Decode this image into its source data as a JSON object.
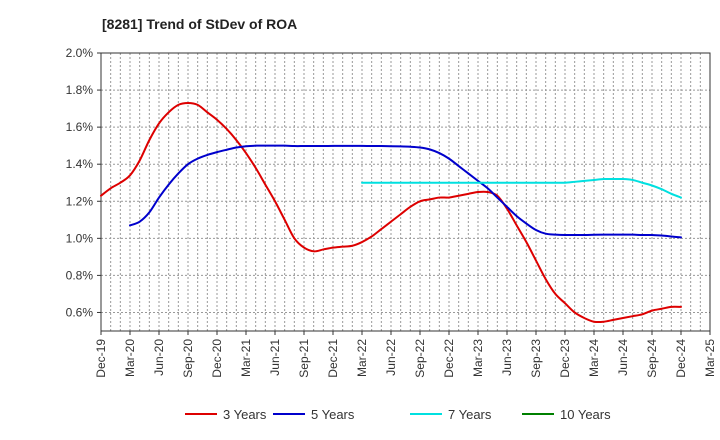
{
  "chart_data": {
    "type": "line",
    "title": "[8281]  Trend of StDev of ROA",
    "xlabel": "",
    "ylabel": "",
    "y_tick_labels": [
      "0.6%",
      "0.8%",
      "1.0%",
      "1.2%",
      "1.4%",
      "1.6%",
      "1.8%",
      "2.0%"
    ],
    "ylim": [
      0.5,
      2.0
    ],
    "x_tick_labels": [
      "Dec-19",
      "Mar-20",
      "Jun-20",
      "Sep-20",
      "Dec-20",
      "Mar-21",
      "Jun-21",
      "Sep-21",
      "Dec-21",
      "Mar-22",
      "Jun-22",
      "Sep-22",
      "Dec-22",
      "Mar-23",
      "Jun-23",
      "Sep-23",
      "Dec-23",
      "Mar-24",
      "Jun-24",
      "Sep-24",
      "Dec-24",
      "Mar-25"
    ],
    "grid": true,
    "legend_position": "bottom",
    "series": [
      {
        "name": "3 Years",
        "color": "#dd0000",
        "x": [
          "Dec-19",
          "Jan-20",
          "Feb-20",
          "Mar-20",
          "Apr-20",
          "May-20",
          "Jun-20",
          "Jul-20",
          "Aug-20",
          "Sep-20",
          "Oct-20",
          "Nov-20",
          "Dec-20",
          "Jan-21",
          "Feb-21",
          "Mar-21",
          "Apr-21",
          "May-21",
          "Jun-21",
          "Jul-21",
          "Aug-21",
          "Sep-21",
          "Oct-21",
          "Nov-21",
          "Dec-21",
          "Jan-22",
          "Feb-22",
          "Mar-22",
          "Apr-22",
          "May-22",
          "Jun-22",
          "Jul-22",
          "Aug-22",
          "Sep-22",
          "Oct-22",
          "Nov-22",
          "Dec-22",
          "Jan-23",
          "Feb-23",
          "Mar-23",
          "Apr-23",
          "May-23",
          "Jun-23",
          "Jul-23",
          "Aug-23",
          "Sep-23",
          "Oct-23",
          "Nov-23",
          "Dec-23",
          "Jan-24",
          "Feb-24",
          "Mar-24",
          "Apr-24",
          "May-24",
          "Jun-24",
          "Jul-24",
          "Aug-24",
          "Sep-24",
          "Oct-24",
          "Nov-24",
          "Dec-24"
        ],
        "values": [
          1.23,
          1.27,
          1.3,
          1.34,
          1.42,
          1.53,
          1.62,
          1.68,
          1.72,
          1.73,
          1.72,
          1.68,
          1.64,
          1.59,
          1.53,
          1.46,
          1.38,
          1.29,
          1.2,
          1.1,
          1.0,
          0.95,
          0.93,
          0.94,
          0.95,
          0.955,
          0.96,
          0.98,
          1.01,
          1.05,
          1.09,
          1.13,
          1.17,
          1.2,
          1.21,
          1.22,
          1.22,
          1.23,
          1.24,
          1.25,
          1.25,
          1.23,
          1.16,
          1.07,
          0.98,
          0.88,
          0.78,
          0.7,
          0.65,
          0.6,
          0.57,
          0.55,
          0.55,
          0.56,
          0.57,
          0.58,
          0.59,
          0.61,
          0.62,
          0.63,
          0.63
        ]
      },
      {
        "name": "5 Years",
        "color": "#0000cc",
        "x": [
          "Dec-19",
          "Jan-20",
          "Feb-20",
          "Mar-20",
          "Apr-20",
          "May-20",
          "Jun-20",
          "Jul-20",
          "Aug-20",
          "Sep-20",
          "Oct-20",
          "Nov-20",
          "Dec-20",
          "Jan-21",
          "Feb-21",
          "Mar-21",
          "Apr-21",
          "May-21",
          "Jun-21",
          "Jul-21",
          "Aug-21",
          "Sep-21",
          "Oct-21",
          "Nov-21",
          "Dec-21",
          "Jan-22",
          "Feb-22",
          "Mar-22",
          "Apr-22",
          "May-22",
          "Jun-22",
          "Jul-22",
          "Aug-22",
          "Sep-22",
          "Oct-22",
          "Nov-22",
          "Dec-22",
          "Jan-23",
          "Feb-23",
          "Mar-23",
          "Apr-23",
          "May-23",
          "Jun-23",
          "Jul-23",
          "Aug-23",
          "Sep-23",
          "Oct-23",
          "Nov-23",
          "Dec-23",
          "Jan-24",
          "Feb-24",
          "Mar-24",
          "Apr-24",
          "May-24",
          "Jun-24",
          "Jul-24",
          "Aug-24",
          "Sep-24",
          "Oct-24",
          "Nov-24",
          "Dec-24"
        ],
        "values": [
          null,
          null,
          null,
          1.07,
          1.09,
          1.14,
          1.22,
          1.29,
          1.35,
          1.4,
          1.43,
          1.45,
          1.465,
          1.478,
          1.49,
          1.497,
          1.5,
          1.5,
          1.5,
          1.5,
          1.498,
          1.498,
          1.498,
          1.498,
          1.499,
          1.499,
          1.499,
          1.499,
          1.498,
          1.498,
          1.497,
          1.496,
          1.494,
          1.49,
          1.48,
          1.46,
          1.43,
          1.39,
          1.35,
          1.31,
          1.27,
          1.22,
          1.17,
          1.12,
          1.08,
          1.045,
          1.025,
          1.02,
          1.018,
          1.018,
          1.018,
          1.019,
          1.02,
          1.02,
          1.02,
          1.02,
          1.018,
          1.018,
          1.015,
          1.01,
          1.005
        ]
      },
      {
        "name": "7 Years",
        "color": "#00e0e0",
        "x": [
          "Mar-22",
          "Apr-22",
          "May-22",
          "Jun-22",
          "Jul-22",
          "Aug-22",
          "Sep-22",
          "Oct-22",
          "Nov-22",
          "Dec-22",
          "Jan-23",
          "Feb-23",
          "Mar-23",
          "Apr-23",
          "May-23",
          "Jun-23",
          "Jul-23",
          "Aug-23",
          "Sep-23",
          "Oct-23",
          "Nov-23",
          "Dec-23",
          "Jan-24",
          "Feb-24",
          "Mar-24",
          "Apr-24",
          "May-24",
          "Jun-24",
          "Jul-24",
          "Aug-24",
          "Sep-24",
          "Oct-24",
          "Nov-24",
          "Dec-24"
        ],
        "values": [
          1.3,
          1.3,
          1.3,
          1.3,
          1.3,
          1.3,
          1.3,
          1.3,
          1.3,
          1.3,
          1.3,
          1.3,
          1.3,
          1.3,
          1.3,
          1.3,
          1.3,
          1.3,
          1.3,
          1.3,
          1.3,
          1.3,
          1.305,
          1.31,
          1.315,
          1.32,
          1.32,
          1.32,
          1.315,
          1.3,
          1.285,
          1.265,
          1.24,
          1.22
        ]
      },
      {
        "name": "10 Years",
        "color": "#008000",
        "x": [],
        "values": []
      }
    ]
  }
}
